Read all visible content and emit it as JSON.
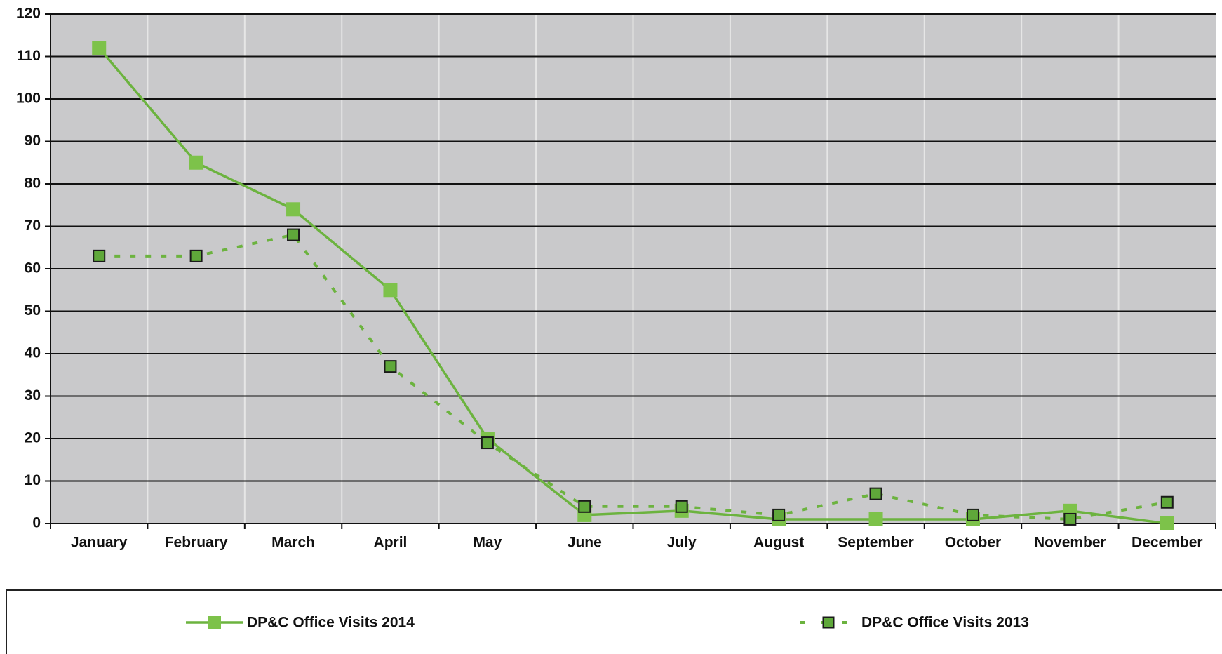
{
  "chart_data": {
    "type": "line",
    "categories": [
      "January",
      "February",
      "March",
      "April",
      "May",
      "June",
      "July",
      "August",
      "September",
      "October",
      "November",
      "December"
    ],
    "series": [
      {
        "name": "DP&C Office Visits 2014",
        "color": "#6cb33f",
        "style": "solid",
        "values": [
          112,
          85,
          74,
          55,
          20,
          2,
          3,
          1,
          1,
          1,
          3,
          0
        ]
      },
      {
        "name": "DP&C Office Visits 2013",
        "color": "#6cb33f",
        "style": "dashed",
        "values": [
          63,
          63,
          68,
          37,
          19,
          4,
          4,
          2,
          7,
          2,
          1,
          5
        ]
      }
    ],
    "ylim": [
      0,
      120
    ],
    "yticks": [
      0,
      10,
      20,
      30,
      40,
      50,
      60,
      70,
      80,
      90,
      100,
      110,
      120
    ],
    "grid": true
  }
}
